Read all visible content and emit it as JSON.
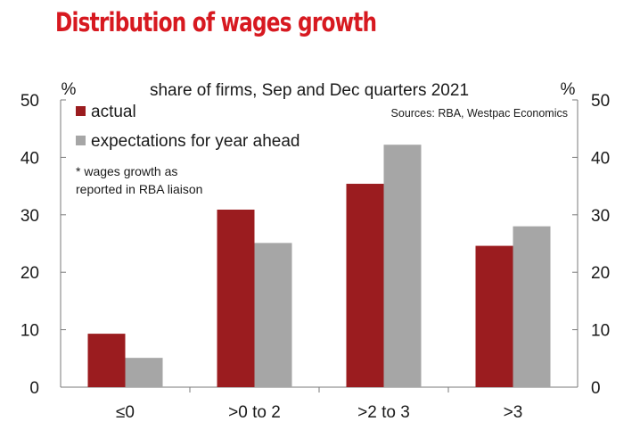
{
  "page_title": "Distribution of wages growth",
  "chart_data": {
    "type": "bar",
    "title": "share of firms, Sep and Dec quarters 2021",
    "source": "Sources: RBA, Westpac Economics",
    "note": [
      "* wages growth as",
      "reported in RBA liaison"
    ],
    "left_axis_unit": "%",
    "right_axis_unit": "%",
    "xlabel": "",
    "ylabel": "%",
    "ylim": [
      0,
      50
    ],
    "yticks": [
      0,
      10,
      20,
      30,
      40,
      50
    ],
    "grid": false,
    "legend_position": "top-left",
    "categories": [
      "≤0",
      ">0 to 2",
      ">2 to 3",
      ">3"
    ],
    "series": [
      {
        "name": "actual",
        "color": "#9b1c1f",
        "values": [
          9.3,
          30.9,
          35.4,
          24.6
        ]
      },
      {
        "name": "expectations for year ahead",
        "color": "#a6a6a6",
        "values": [
          5.1,
          25.1,
          42.2,
          28.0
        ]
      }
    ]
  }
}
